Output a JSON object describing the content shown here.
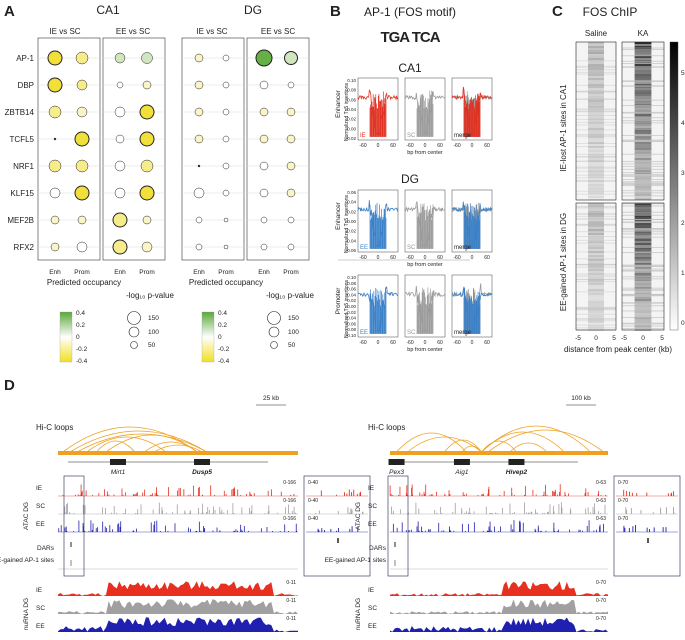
{
  "panels": {
    "A": {
      "letter": "A",
      "regions": [
        {
          "title": "CA1",
          "comparisons": [
            "IE vs SC",
            "EE vs SC"
          ]
        },
        {
          "title": "DG",
          "comparisons": [
            "IE vs SC",
            "EE vs SC"
          ]
        }
      ],
      "motifs": [
        "AP-1",
        "DBP",
        "ZBTB14",
        "TCFL5",
        "NRF1",
        "KLF15",
        "MEF2B",
        "RFX2"
      ],
      "x_labels": [
        "Enh",
        "Prom"
      ],
      "legend_color_title": "Predicted occupancy",
      "legend_color_ticks": [
        "0.4",
        "0.2",
        "0",
        "-0.2",
        "-0.4"
      ],
      "legend_size_title": "-log₁₀ p-value",
      "legend_size_values": [
        "150",
        "100",
        "50"
      ]
    },
    "B": {
      "letter": "B",
      "title": "AP-1 (FOS motif)",
      "logo_text": "TGA TCA",
      "sections": [
        "CA1",
        "DG"
      ],
      "row_side_labels": [
        "Enhancer",
        "Enhancer",
        "Promoter"
      ],
      "y_axis_label": "Normalized Tn5 insertions",
      "x_axis_label": "bp from center",
      "x_ticks": [
        "-60",
        "0",
        "60"
      ],
      "row_y_ticks": [
        [
          "0.10",
          "0.08",
          "0.06",
          "0.04",
          "0.02",
          "0.00",
          "-0.02"
        ],
        [
          "0.06",
          "0.04",
          "0.02",
          "0.00",
          "-0.02",
          "-0.04",
          "-0.06"
        ],
        [
          "0.10",
          "0.08",
          "0.06",
          "0.04",
          "0.02",
          "0.00",
          "-0.02",
          "-0.04",
          "-0.06",
          "-0.08",
          "-0.10"
        ]
      ],
      "row_labels": [
        [
          "IE",
          "SC",
          "merge"
        ],
        [
          "EE",
          "SC",
          "merge"
        ],
        [
          "EE",
          "SC",
          "merge"
        ]
      ],
      "colors": {
        "ie": "#e03020",
        "sc": "#9a9a9a",
        "ee": "#3a80c8"
      }
    },
    "C": {
      "letter": "C",
      "title": "FOS ChIP",
      "columns": [
        "Saline",
        "KA"
      ],
      "row_labels": [
        "IE-lost AP-1 sites in CA1",
        "EE-gained AP-1 sites in DG"
      ],
      "x_ticks": [
        "-5",
        "0",
        "5",
        "-5",
        "0",
        "5"
      ],
      "x_axis_label": "distance from peak center (kb)",
      "colorbar_ticks": [
        "5",
        "4",
        "3",
        "2",
        "1",
        "0"
      ]
    },
    "D": {
      "letter": "D",
      "left": {
        "scale": "25 kb",
        "loops_label": "Hi-C loops",
        "genes": [
          "Mirt1",
          "Dusp5"
        ],
        "group_label_atac": "ATAC DG",
        "group_label_nu": "nuRNA DG",
        "tracks": [
          "IE",
          "SC",
          "EE"
        ],
        "atac_range": "0-166",
        "zoom_range": "0-40",
        "nu_range": "0-11",
        "dars_label": "DARs",
        "sites_label": "EE-gained AP-1 sites"
      },
      "right": {
        "scale": "100 kb",
        "loops_label": "Hi-C loops",
        "genes": [
          "Pex3",
          "Aig1",
          "Hivep2"
        ],
        "group_label_atac": "ATAC DG",
        "group_label_nu": "nuRNA DG",
        "tracks": [
          "IE",
          "SC",
          "EE"
        ],
        "atac_range": "0-63",
        "zoom_range": "0-70",
        "nu_range": "0-70",
        "dars_label": "DARs",
        "sites_label": "EE-gained AP-1 sites"
      },
      "colors": {
        "ie": "#e83020",
        "sc": "#a0a0a0",
        "ee": "#2020b0",
        "loop": "#f0a020"
      }
    }
  }
}
